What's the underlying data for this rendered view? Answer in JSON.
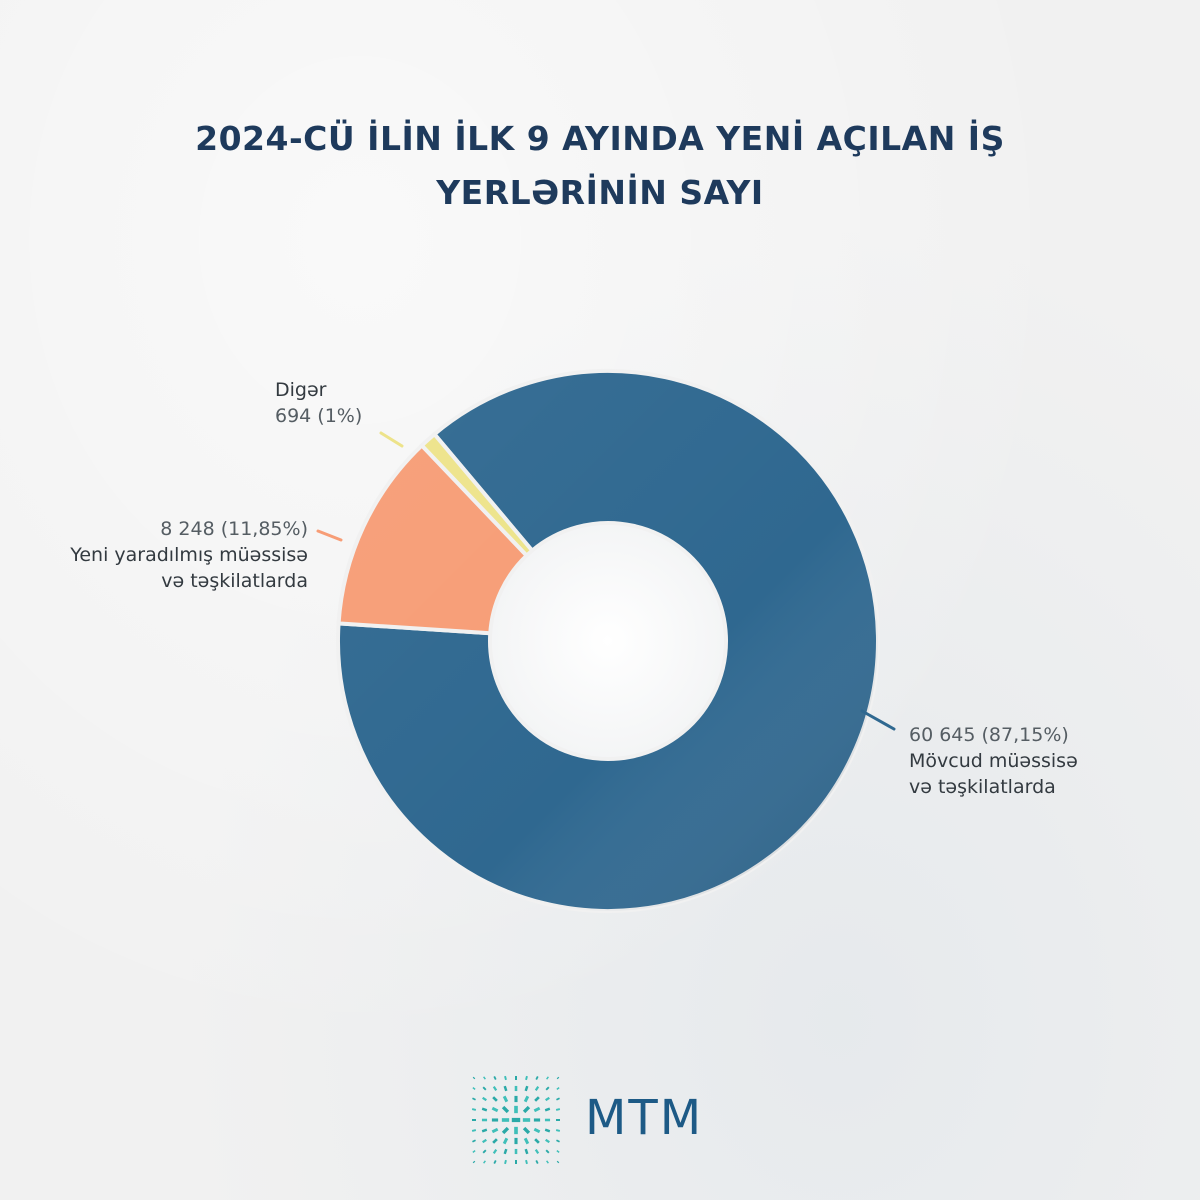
{
  "title_line1": "2024-CÜ İLİN İLK 9 AYINDA YENİ AÇILAN İŞ",
  "title_line2": "YERLƏRİNİN SAYI",
  "brand": "MTM",
  "colors": {
    "title": "#1e3a5c",
    "movcud": "#2f6890",
    "yeni": "#f79d76",
    "digar": "#ede38a",
    "brand": "#1d5a86"
  },
  "chart_data": {
    "type": "pie",
    "variant": "donut",
    "title": "2024-CÜ İLİN İLK 9 AYINDA YENİ AÇILAN İŞ YERLƏRİNİN SAYI",
    "slices": [
      {
        "name": "Mövcud müəssisə və təşkilatlarda",
        "value": 60645,
        "percent": 87.15,
        "label_value": "60 645 (87,15%)",
        "label_line1": "Mövcud müəssisə",
        "label_line2": "və təşkilatlarda",
        "color": "#2f6890"
      },
      {
        "name": "Yeni yaradılmış müəssisə və təşkilatlarda",
        "value": 8248,
        "percent": 11.85,
        "label_value": "8 248 (11,85%)",
        "label_line1": "Yeni yaradılmış müəssisə",
        "label_line2": "və təşkilatlarda",
        "color": "#f79d76"
      },
      {
        "name": "Digər",
        "value": 694,
        "percent": 1,
        "label_value": "694 (1%)",
        "label_line1": "Digər",
        "color": "#ede38a"
      }
    ]
  }
}
